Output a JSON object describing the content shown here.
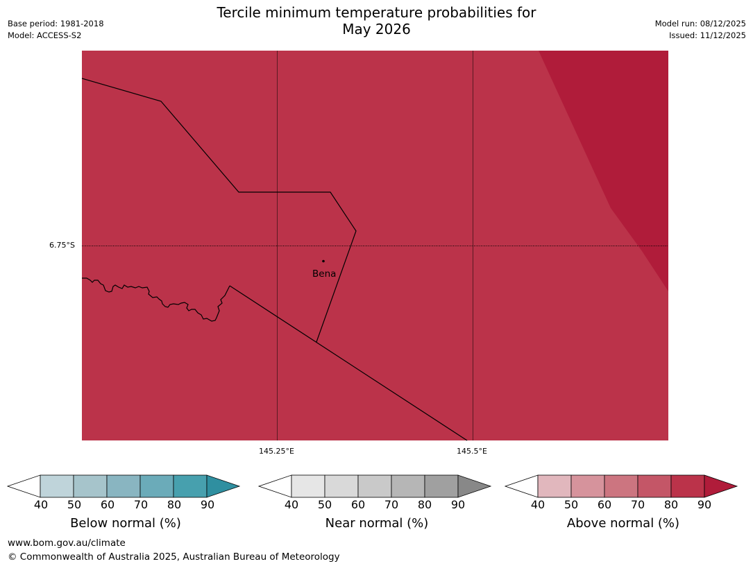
{
  "header": {
    "title_line1": "Tercile minimum temperature probabilities for",
    "title_line2": "May 2026",
    "base_period": "Base period: 1981-2018",
    "model": "Model: ACCESS-S2",
    "model_run": "Model run: 08/12/2025",
    "issued": "Issued: 11/12/2025"
  },
  "map": {
    "lat_label": "6.75°S",
    "lon_labels": [
      "145.25°E",
      "145.5°E"
    ],
    "place": "Bena",
    "colors": {
      "background": "#bb334a",
      "high_band": "#b01c3a",
      "boundary": "#000000",
      "gridline": "#5a1a22"
    }
  },
  "legends": [
    {
      "label": "Below normal (%)",
      "ticks": [
        "40",
        "50",
        "60",
        "70",
        "80",
        "90"
      ],
      "colors": [
        "#ffffff",
        "#bfd4da",
        "#a6c4cb",
        "#89b5c1",
        "#6babb9",
        "#47a0ae",
        "#2f8fa0"
      ]
    },
    {
      "label": "Near normal (%)",
      "ticks": [
        "40",
        "50",
        "60",
        "70",
        "80",
        "90"
      ],
      "colors": [
        "#ffffff",
        "#e6e6e6",
        "#d9d9d9",
        "#c9c9c9",
        "#b6b6b6",
        "#a0a0a0",
        "#888888"
      ]
    },
    {
      "label": "Above normal (%)",
      "ticks": [
        "40",
        "50",
        "60",
        "70",
        "80",
        "90"
      ],
      "colors": [
        "#ffffff",
        "#e1b7bd",
        "#d6939c",
        "#cc7580",
        "#c45667",
        "#bb334a",
        "#b01c3a"
      ]
    }
  ],
  "footer": {
    "url": "www.bom.gov.au/climate",
    "copyright": "© Commonwealth of Australia 2025, Australian Bureau of Meteorology"
  }
}
